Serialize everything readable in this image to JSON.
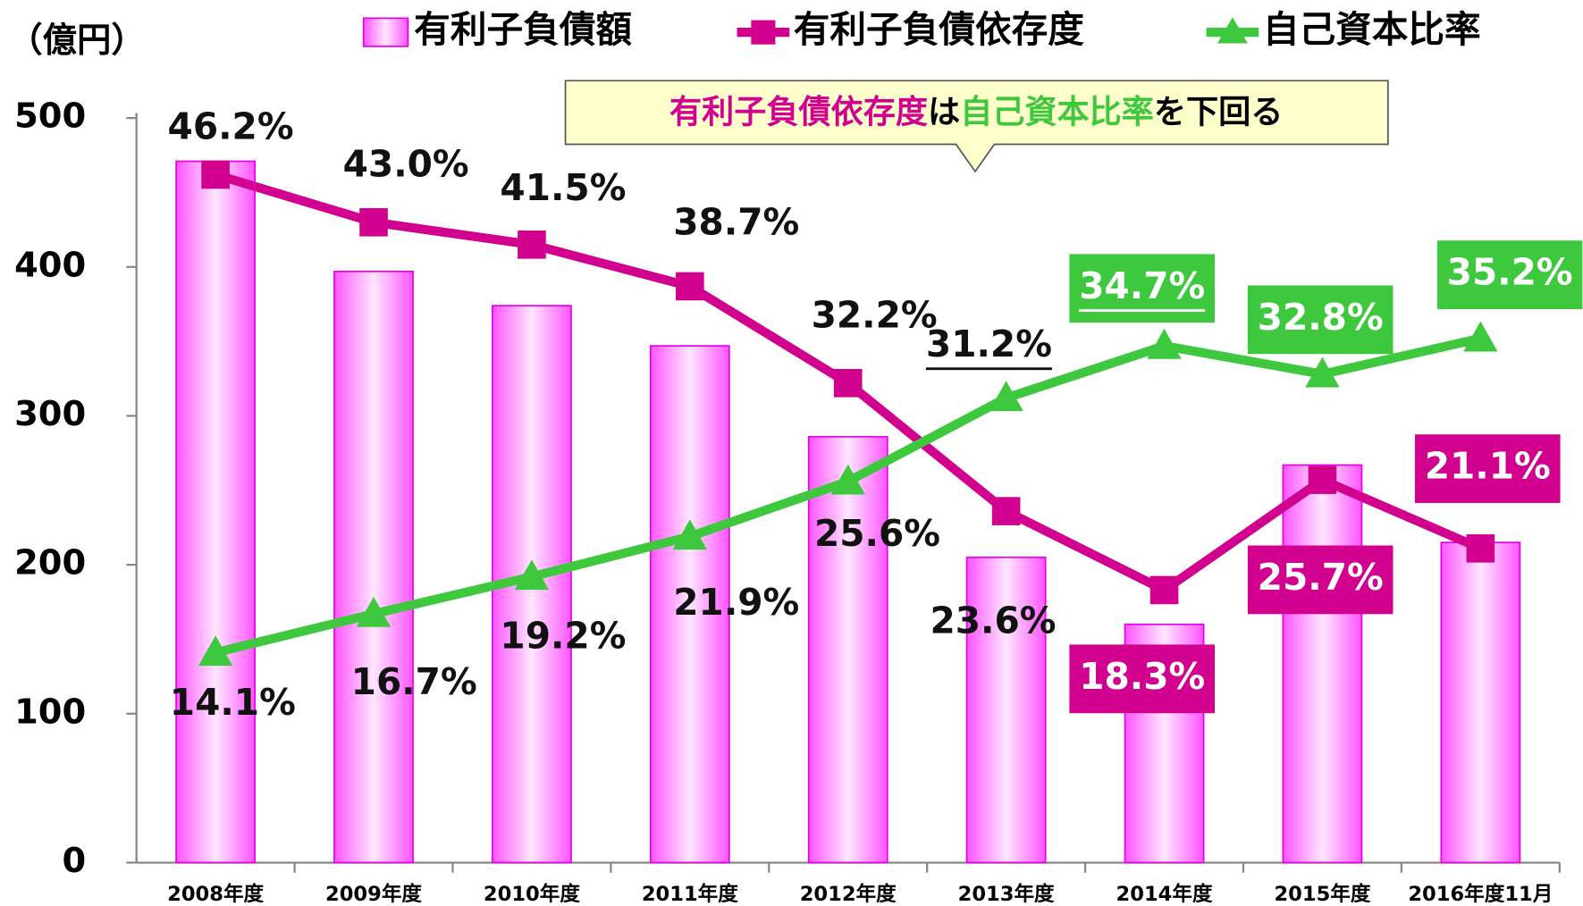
{
  "chart_data": {
    "type": "bar_line",
    "y_label": "（億円）",
    "annotation": [
      {
        "text": "有利子負債依存度",
        "color": "#d1008f"
      },
      {
        "text": "は",
        "color": "#000000"
      },
      {
        "text": "自己資本比率",
        "color": "#3ec83e"
      },
      {
        "text": "を下回る",
        "color": "#000000"
      }
    ],
    "categories": [
      "2008年度",
      "2009年度",
      "2010年度",
      "2011年度",
      "2012年度",
      "2013年度",
      "2014年度",
      "2015年度",
      "2016年度11月"
    ],
    "ylim": [
      0,
      500
    ],
    "yticks": [
      0,
      100,
      200,
      300,
      400,
      500
    ],
    "y2lim": [
      0,
      50
    ],
    "series": [
      {
        "name": "有利子負債額",
        "type": "bar",
        "color": "#ff66ff",
        "values": [
          471,
          397,
          374,
          347,
          286,
          205,
          160,
          267,
          215
        ]
      },
      {
        "name": "有利子負債依存度",
        "type": "line",
        "marker": "square",
        "axis": "y2",
        "color": "#d1008f",
        "values": [
          46.2,
          43.0,
          41.5,
          38.7,
          32.2,
          23.6,
          18.3,
          25.7,
          21.1
        ],
        "value_labels": [
          "46.2%",
          "43.0%",
          "41.5%",
          "38.7%",
          "32.2%",
          "23.6%",
          "18.3%",
          "25.7%",
          "21.1%"
        ]
      },
      {
        "name": "自己資本比率",
        "type": "line",
        "marker": "triangle",
        "axis": "y2",
        "color": "#3ec83e",
        "values": [
          14.1,
          16.7,
          19.2,
          21.9,
          25.6,
          31.2,
          34.7,
          32.8,
          35.2
        ],
        "value_labels": [
          "14.1%",
          "16.7%",
          "19.2%",
          "21.9%",
          "25.6%",
          "31.2%",
          "34.7%",
          "32.8%",
          "35.2%"
        ]
      }
    ]
  }
}
